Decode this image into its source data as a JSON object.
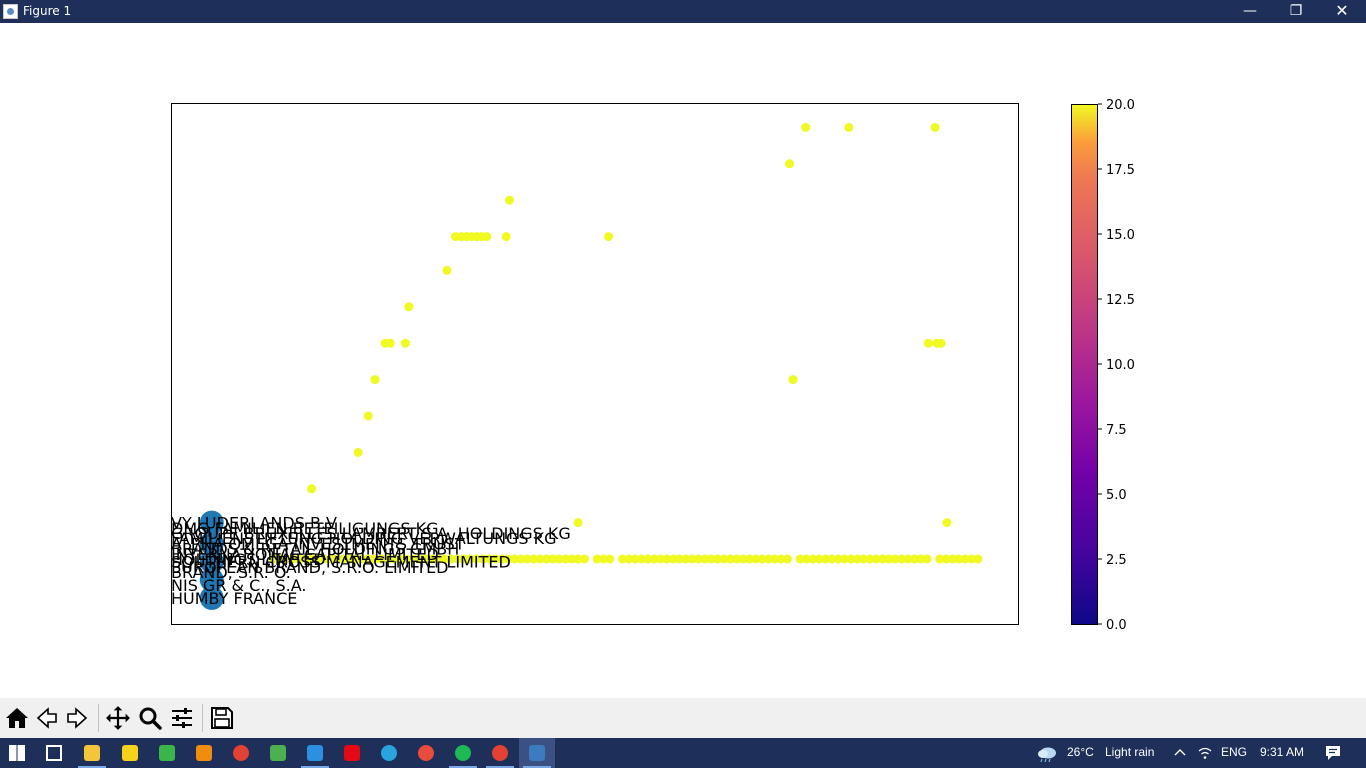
{
  "window": {
    "title": "Figure 1",
    "controls": {
      "minimize": "—",
      "maximize": "❐",
      "close": "✕"
    }
  },
  "chart_data": {
    "type": "scatter",
    "title": "",
    "xlabel": "",
    "ylabel": "",
    "xlim": [
      0,
      100
    ],
    "ylim": [
      0,
      100
    ],
    "grid": false,
    "axis_ticks_visible": false,
    "colormap": "plasma",
    "colorbar": {
      "range": [
        0,
        20
      ],
      "ticks": [
        "0.0",
        "2.5",
        "5.0",
        "7.5",
        "10.0",
        "12.5",
        "15.0",
        "17.5",
        "20.0"
      ]
    },
    "colors": {
      "point": "#f0f921",
      "highlight": "#1f77b4"
    },
    "scatter_points": [
      {
        "x": 16.5,
        "y": 26.0
      },
      {
        "x": 22.0,
        "y": 33.0
      },
      {
        "x": 23.2,
        "y": 40.0
      },
      {
        "x": 24.0,
        "y": 47.0
      },
      {
        "x": 25.2,
        "y": 54.0
      },
      {
        "x": 25.8,
        "y": 54.0
      },
      {
        "x": 27.6,
        "y": 54.0
      },
      {
        "x": 28.0,
        "y": 61.0
      },
      {
        "x": 32.5,
        "y": 68.0
      },
      {
        "x": 33.5,
        "y": 74.5
      },
      {
        "x": 34.2,
        "y": 74.5
      },
      {
        "x": 34.8,
        "y": 74.5
      },
      {
        "x": 35.4,
        "y": 74.5
      },
      {
        "x": 36.0,
        "y": 74.5
      },
      {
        "x": 36.6,
        "y": 74.5
      },
      {
        "x": 37.2,
        "y": 74.5
      },
      {
        "x": 39.5,
        "y": 74.5
      },
      {
        "x": 39.9,
        "y": 81.5
      },
      {
        "x": 48.0,
        "y": 19.5
      },
      {
        "x": 51.6,
        "y": 74.5
      },
      {
        "x": 73.0,
        "y": 88.5
      },
      {
        "x": 73.4,
        "y": 47.0
      },
      {
        "x": 74.9,
        "y": 95.5
      },
      {
        "x": 80.0,
        "y": 95.5
      },
      {
        "x": 89.4,
        "y": 54.0
      },
      {
        "x": 90.2,
        "y": 95.5
      },
      {
        "x": 90.4,
        "y": 54.0
      },
      {
        "x": 90.9,
        "y": 54.0
      },
      {
        "x": 91.6,
        "y": 19.5
      }
    ],
    "dense_band": {
      "y": 12.5,
      "x_start": 12,
      "x_end": 95.5,
      "step": 0.75,
      "gaps": [
        [
          48.9,
          49.8
        ],
        [
          52.4,
          53.2
        ],
        [
          73.2,
          73.8
        ],
        [
          80.3,
          80.9
        ],
        [
          89.6,
          90.4
        ]
      ]
    },
    "highlight_points": [
      {
        "x": 4.7,
        "y": 19.5,
        "r": 12
      },
      {
        "x": 4.7,
        "y": 15.5,
        "r": 12
      },
      {
        "x": 4.7,
        "y": 12.0,
        "r": 12
      },
      {
        "x": 4.7,
        "y": 8.5,
        "r": 12
      },
      {
        "x": 4.7,
        "y": 5.0,
        "r": 12
      }
    ],
    "annotations": [
      {
        "text": "VY LUDERLANDS B.V",
        "x": 0,
        "y": 19.5
      },
      {
        "text": "DMG FAMILIEN BETEILIGUNGS KG",
        "x": 0,
        "y": 18.5
      },
      {
        "text": "GROUPE BRUXELLES LAMBERT S.A. HOLDINGS KG",
        "x": 0,
        "y": 17.5
      },
      {
        "text": "FAMILIENSTIFTUNG HOLDING VERWALTUNGS KG",
        "x": 0,
        "y": 16.5
      },
      {
        "text": "ALPHA OMEGA INVESTMENTS TRUST",
        "x": 0,
        "y": 15.5
      },
      {
        "text": "BRANDS & RETAIL HOLDINGS GMBH",
        "x": 0,
        "y": 14.5
      },
      {
        "text": "INTERNATIONAL CAPITAL LIMITED",
        "x": 0,
        "y": 13.5
      },
      {
        "text": "HOLDINGS LIMITED",
        "x": 0,
        "y": 12.5
      },
      {
        "text": "SOUTHERN CROSS MANAGEMENT LIMITED",
        "x": 0,
        "y": 12.0
      },
      {
        "text": "EUROPEAN BRAND, S.R.O. LIMITED",
        "x": 0,
        "y": 11.0
      },
      {
        "text": "BRAND, S.R. O.",
        "x": 0,
        "y": 10.0
      },
      {
        "text": "NIS GR & C., S.A.",
        "x": 0,
        "y": 7.5
      },
      {
        "text": "HUMBY FRANCE",
        "x": 0,
        "y": 5.0
      }
    ]
  },
  "toolbar": {
    "buttons": [
      {
        "name": "home-button",
        "icon": "home-icon"
      },
      {
        "name": "back-button",
        "icon": "arrow-left-icon"
      },
      {
        "name": "forward-button",
        "icon": "arrow-right-icon"
      },
      {
        "name": "pan-button",
        "icon": "move-icon"
      },
      {
        "name": "zoom-button",
        "icon": "magnifier-icon"
      },
      {
        "name": "configure-subplots-button",
        "icon": "sliders-icon"
      },
      {
        "name": "save-button",
        "icon": "floppy-icon"
      }
    ]
  },
  "taskbar": {
    "weather": {
      "temperature": "26°C",
      "condition": "Light rain"
    },
    "language": "ENG",
    "time": "9:31 AM",
    "apps": [
      {
        "name": "start",
        "color": "#ffffff"
      },
      {
        "name": "task-view",
        "color": "#ffffff"
      },
      {
        "name": "file-explorer",
        "color": "#f3c53a"
      },
      {
        "name": "sticky-notes",
        "color": "#f7d21a"
      },
      {
        "name": "app-green",
        "color": "#3ab54a"
      },
      {
        "name": "vlc",
        "color": "#f28c0f"
      },
      {
        "name": "chrome",
        "color": "#e34133"
      },
      {
        "name": "app-earth",
        "color": "#4caf50"
      },
      {
        "name": "vscode",
        "color": "#2d8fe0"
      },
      {
        "name": "netflix",
        "color": "#e50914"
      },
      {
        "name": "telegram",
        "color": "#2aa3df"
      },
      {
        "name": "app-clock",
        "color": "#e84c3d"
      },
      {
        "name": "spotify",
        "color": "#1db954"
      },
      {
        "name": "chrome-alt",
        "color": "#e34133"
      },
      {
        "name": "python-figure",
        "color": "#3b7bbf"
      }
    ]
  }
}
